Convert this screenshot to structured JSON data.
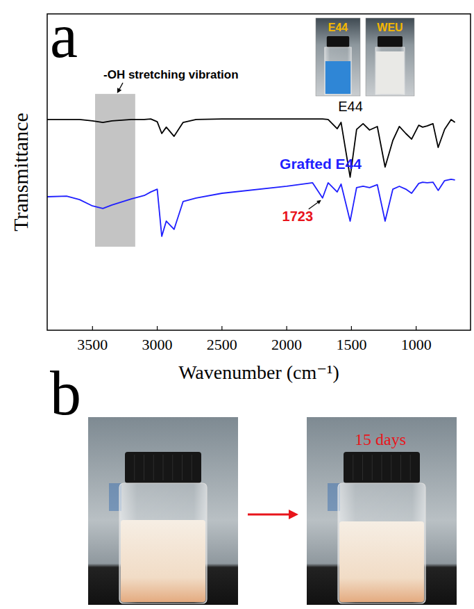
{
  "chart_data": {
    "type": "line",
    "panel_letter": "a",
    "x_label": "Wavenumber (cm⁻¹)",
    "y_label": "Transmittance",
    "x": [
      3850,
      3700,
      3600,
      3500,
      3420,
      3350,
      3200,
      3100,
      3050,
      3000,
      2965,
      2930,
      2870,
      2800,
      2700,
      2500,
      2000,
      1800,
      1723,
      1680,
      1610,
      1580,
      1510,
      1460,
      1410,
      1360,
      1300,
      1240,
      1180,
      1130,
      1080,
      1035,
      980,
      950,
      915,
      870,
      830,
      780,
      730,
      700
    ],
    "xlim": [
      3850,
      580
    ],
    "xticks": [
      3500,
      3000,
      2500,
      2000,
      1500,
      1000
    ],
    "ylim": [
      0,
      100
    ],
    "tick_labels": "x",
    "series": [
      {
        "name": "E44",
        "color": "#000000",
        "values": [
          66.6,
          66.6,
          66.6,
          66.2,
          65.7,
          66.2,
          66.6,
          66.6,
          66.8,
          65.9,
          62.2,
          64.2,
          61.3,
          65.7,
          66.6,
          66.8,
          66.8,
          66.8,
          66.8,
          66.6,
          63.7,
          65.7,
          48.4,
          63.5,
          65.3,
          63.3,
          64.4,
          51.6,
          60.0,
          64.4,
          62.2,
          60.4,
          64.8,
          64.2,
          64.6,
          65.3,
          57.8,
          63.5,
          66.6,
          65.7
        ]
      },
      {
        "name": "Grafted E44",
        "color": "#1f1fff",
        "values": [
          42.2,
          42.4,
          41.3,
          39.3,
          38.5,
          39.6,
          41.5,
          42.6,
          43.7,
          44.6,
          29.7,
          34.5,
          31.9,
          40.7,
          41.8,
          43.3,
          45.5,
          46.6,
          41.8,
          46.6,
          43.7,
          46.2,
          34.5,
          45.1,
          45.5,
          45.1,
          46.0,
          34.5,
          44.6,
          45.5,
          44.6,
          43.3,
          46.4,
          46.8,
          46.6,
          46.8,
          44.2,
          47.3,
          47.7,
          47.5
        ]
      }
    ],
    "annotations": [
      {
        "text": "-OH stretching vibration",
        "x": [
          3480,
          3170
        ],
        "y": [
          26.4,
          74.7
        ]
      },
      {
        "text": "1723",
        "x": 1723,
        "color": "#e8141b"
      }
    ],
    "insets": [
      {
        "label": "E44"
      },
      {
        "label": "WEU"
      }
    ]
  },
  "panel_b": {
    "letter": "b",
    "label": "15 days",
    "color": "#e8141b"
  }
}
